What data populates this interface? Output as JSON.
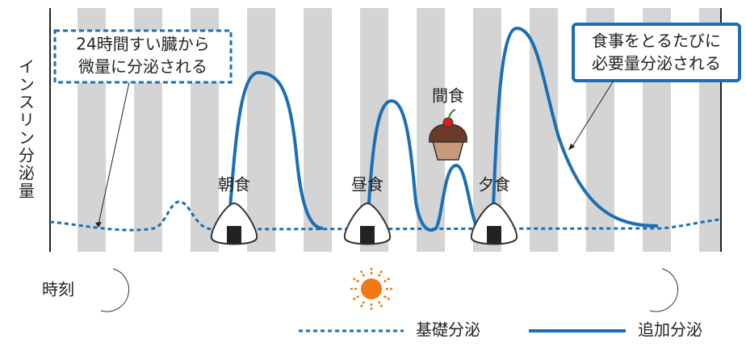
{
  "y_axis_label": "インスリン分泌量",
  "x_axis_label": "時刻",
  "annotations": {
    "basal": [
      "24時間すい臓から",
      "微量に分泌される"
    ],
    "bolus": [
      "食事をとるたびに",
      "必要量分泌される"
    ]
  },
  "meals": [
    "朝食",
    "昼食",
    "間食",
    "夕食"
  ],
  "legend": [
    "基礎分泌",
    "追加分泌"
  ]
}
